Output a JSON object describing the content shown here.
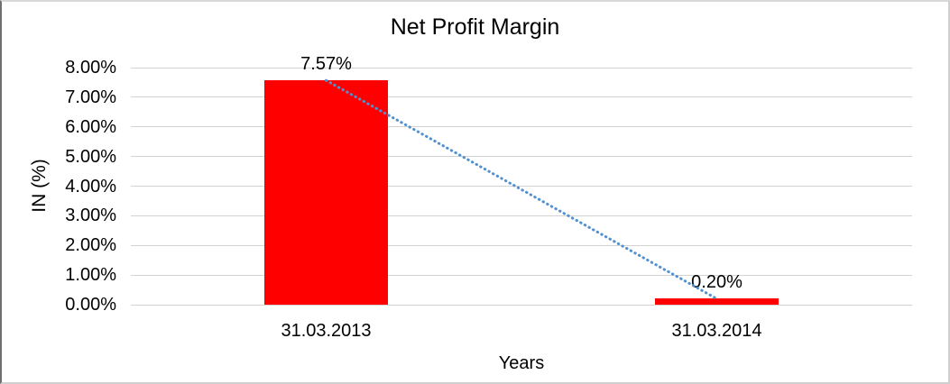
{
  "chart_data": {
    "type": "bar",
    "title": "Net Profit Margin",
    "xlabel": "Years",
    "ylabel": "IN (%)",
    "categories": [
      "31.03.2013",
      "31.03.2014"
    ],
    "values": [
      7.57,
      0.2
    ],
    "data_labels": [
      "7.57%",
      "0.20%"
    ],
    "ylim": [
      0,
      8
    ],
    "ytick_step": 1,
    "ytick_labels": [
      "0.00%",
      "1.00%",
      "2.00%",
      "3.00%",
      "4.00%",
      "5.00%",
      "6.00%",
      "7.00%",
      "8.00%"
    ],
    "grid": "horizontal",
    "legend": "none",
    "bar_color": "#ff0000",
    "gridline_color": "#d3d3d3",
    "trendline": {
      "type": "linear",
      "style": "dotted",
      "color": "#5291d1",
      "connects": "bar tops",
      "from_value": 7.57,
      "to_value": 0.2
    }
  }
}
